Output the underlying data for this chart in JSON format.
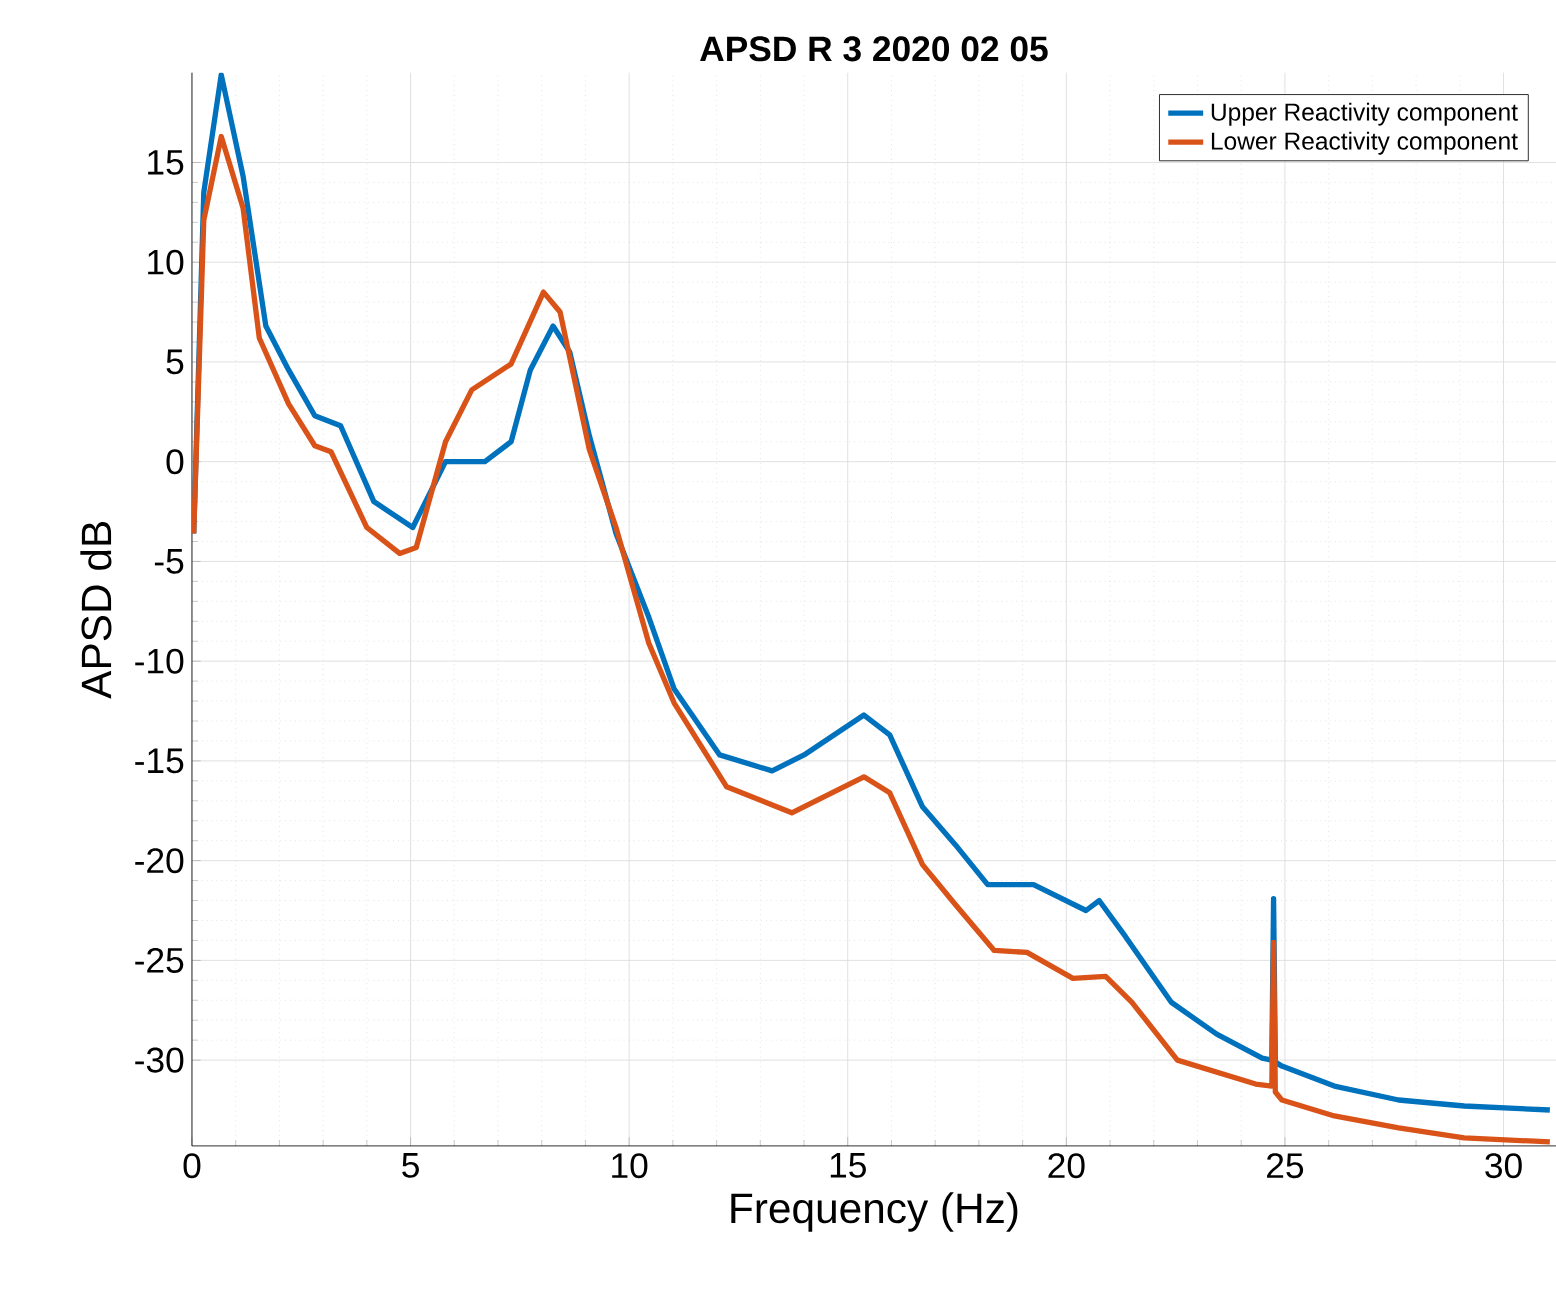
{
  "chart_data": {
    "type": "line",
    "title": "APSD R 3   2020 02 05",
    "xlabel": "Frequency (Hz)",
    "ylabel": "APSD dB",
    "xlim": [
      0,
      31.2
    ],
    "ylim": [
      -34.3,
      19.5
    ],
    "xticks": [
      0,
      5,
      10,
      15,
      20,
      25,
      30
    ],
    "yticks": [
      -30,
      -25,
      -20,
      -15,
      -10,
      -5,
      0,
      5,
      10,
      15
    ],
    "grid": true,
    "legend": "top right",
    "marker": "none",
    "line_style": "solid",
    "series": [
      {
        "name": "Upper Reactivity component",
        "color": "#0072bd",
        "x": [
          0.04,
          0.27,
          0.67,
          1.17,
          1.69,
          2.21,
          2.81,
          3.4,
          4.16,
          5.05,
          5.8,
          6.7,
          7.3,
          7.74,
          8.26,
          8.64,
          9.09,
          9.7,
          10.45,
          11.03,
          12.07,
          13.27,
          14.0,
          15.37,
          15.96,
          16.71,
          17.46,
          18.2,
          19.25,
          20.45,
          20.75,
          21.35,
          22.4,
          23.44,
          24.48,
          24.7,
          24.74,
          24.78,
          24.93,
          26.13,
          27.6,
          29.1,
          31.06
        ],
        "values": [
          -3.6,
          13.5,
          19.4,
          14.3,
          6.8,
          4.6,
          2.3,
          1.8,
          -2.0,
          -3.3,
          0,
          0,
          1.0,
          4.6,
          6.8,
          5.5,
          1.3,
          -3.6,
          -7.8,
          -11.4,
          -14.7,
          -15.5,
          -14.7,
          -12.7,
          -13.7,
          -17.3,
          -19.2,
          -21.2,
          -21.2,
          -22.5,
          -22.0,
          -23.8,
          -27.1,
          -28.7,
          -29.9,
          -30.0,
          -21.9,
          -30.1,
          -30.3,
          -31.3,
          -32.0,
          -32.3,
          -32.5
        ]
      },
      {
        "name": "Lower Reactivity component",
        "color": "#d95319",
        "x": [
          0.04,
          0.27,
          0.67,
          1.17,
          1.54,
          2.21,
          2.81,
          3.18,
          4.0,
          4.75,
          5.13,
          5.8,
          6.4,
          7.3,
          8.04,
          8.42,
          9.09,
          9.7,
          10.45,
          11.03,
          12.23,
          13.72,
          15.37,
          15.96,
          16.71,
          17.46,
          18.35,
          19.1,
          20.15,
          20.9,
          21.5,
          22.54,
          24.33,
          24.7,
          24.74,
          24.78,
          24.93,
          26.13,
          27.6,
          29.1,
          31.06
        ],
        "values": [
          -3.6,
          12.1,
          16.3,
          12.7,
          6.2,
          2.9,
          0.8,
          0.5,
          -3.3,
          -4.6,
          -4.3,
          1.0,
          3.6,
          4.9,
          8.5,
          7.5,
          0.6,
          -3.3,
          -9.1,
          -12.1,
          -16.3,
          -17.6,
          -15.8,
          -16.6,
          -20.2,
          -22.2,
          -24.5,
          -24.6,
          -25.9,
          -25.8,
          -27.1,
          -30.0,
          -31.2,
          -31.3,
          -24.1,
          -31.6,
          -32.0,
          -32.8,
          -33.4,
          -33.9,
          -34.1
        ]
      }
    ]
  }
}
